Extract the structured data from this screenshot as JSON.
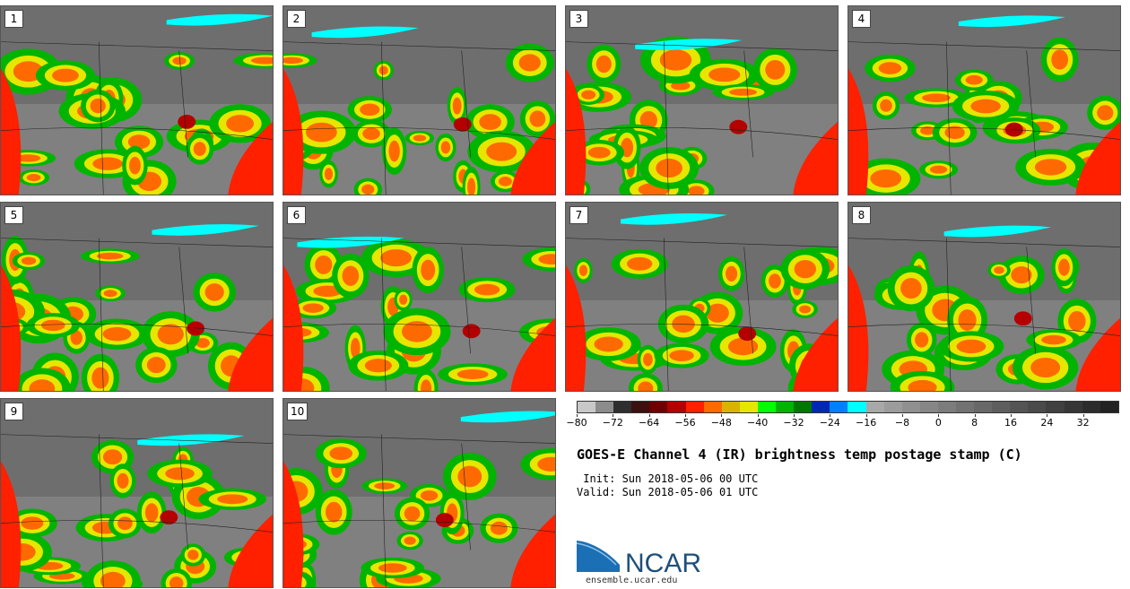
{
  "panels": [
    {
      "label": "1"
    },
    {
      "label": "2"
    },
    {
      "label": "3"
    },
    {
      "label": "4"
    },
    {
      "label": "5"
    },
    {
      "label": "6"
    },
    {
      "label": "7"
    },
    {
      "label": "8"
    },
    {
      "label": "9"
    },
    {
      "label": "10"
    }
  ],
  "colorbar": {
    "min": -80,
    "max": 40,
    "step": 4,
    "tick_labels": [
      "-80",
      "-72",
      "-64",
      "-56",
      "-48",
      "-40",
      "-32",
      "-24",
      "-16",
      "-8",
      "0",
      "8",
      "16",
      "24",
      "32"
    ],
    "tick_values": [
      -80,
      -72,
      -64,
      -56,
      -48,
      -40,
      -32,
      -24,
      -16,
      -8,
      0,
      8,
      16,
      24,
      32
    ],
    "colors": [
      "#c8c8c8",
      "#8c8c8c",
      "#2e2e2e",
      "#3d1010",
      "#6e0000",
      "#b40000",
      "#ff2000",
      "#ff6a00",
      "#d8b400",
      "#e6e600",
      "#00ff00",
      "#00b400",
      "#007800",
      "#0028b4",
      "#0080ff",
      "#00ffff",
      "#a8a8a8",
      "#9c9c9c",
      "#909090",
      "#868686",
      "#7c7c7c",
      "#727272",
      "#686868",
      "#5e5e5e",
      "#545454",
      "#4a4a4a",
      "#404040",
      "#363636",
      "#2c2c2c",
      "#222222"
    ]
  },
  "title": "GOES-E Channel 4 (IR) brightness temp postage stamp (C)",
  "init": " Init: Sun 2018-05-06 00 UTC",
  "valid": "Valid: Sun 2018-05-06 01 UTC",
  "logo": {
    "text": "NCAR",
    "url": "ensemble.ucar.edu"
  }
}
